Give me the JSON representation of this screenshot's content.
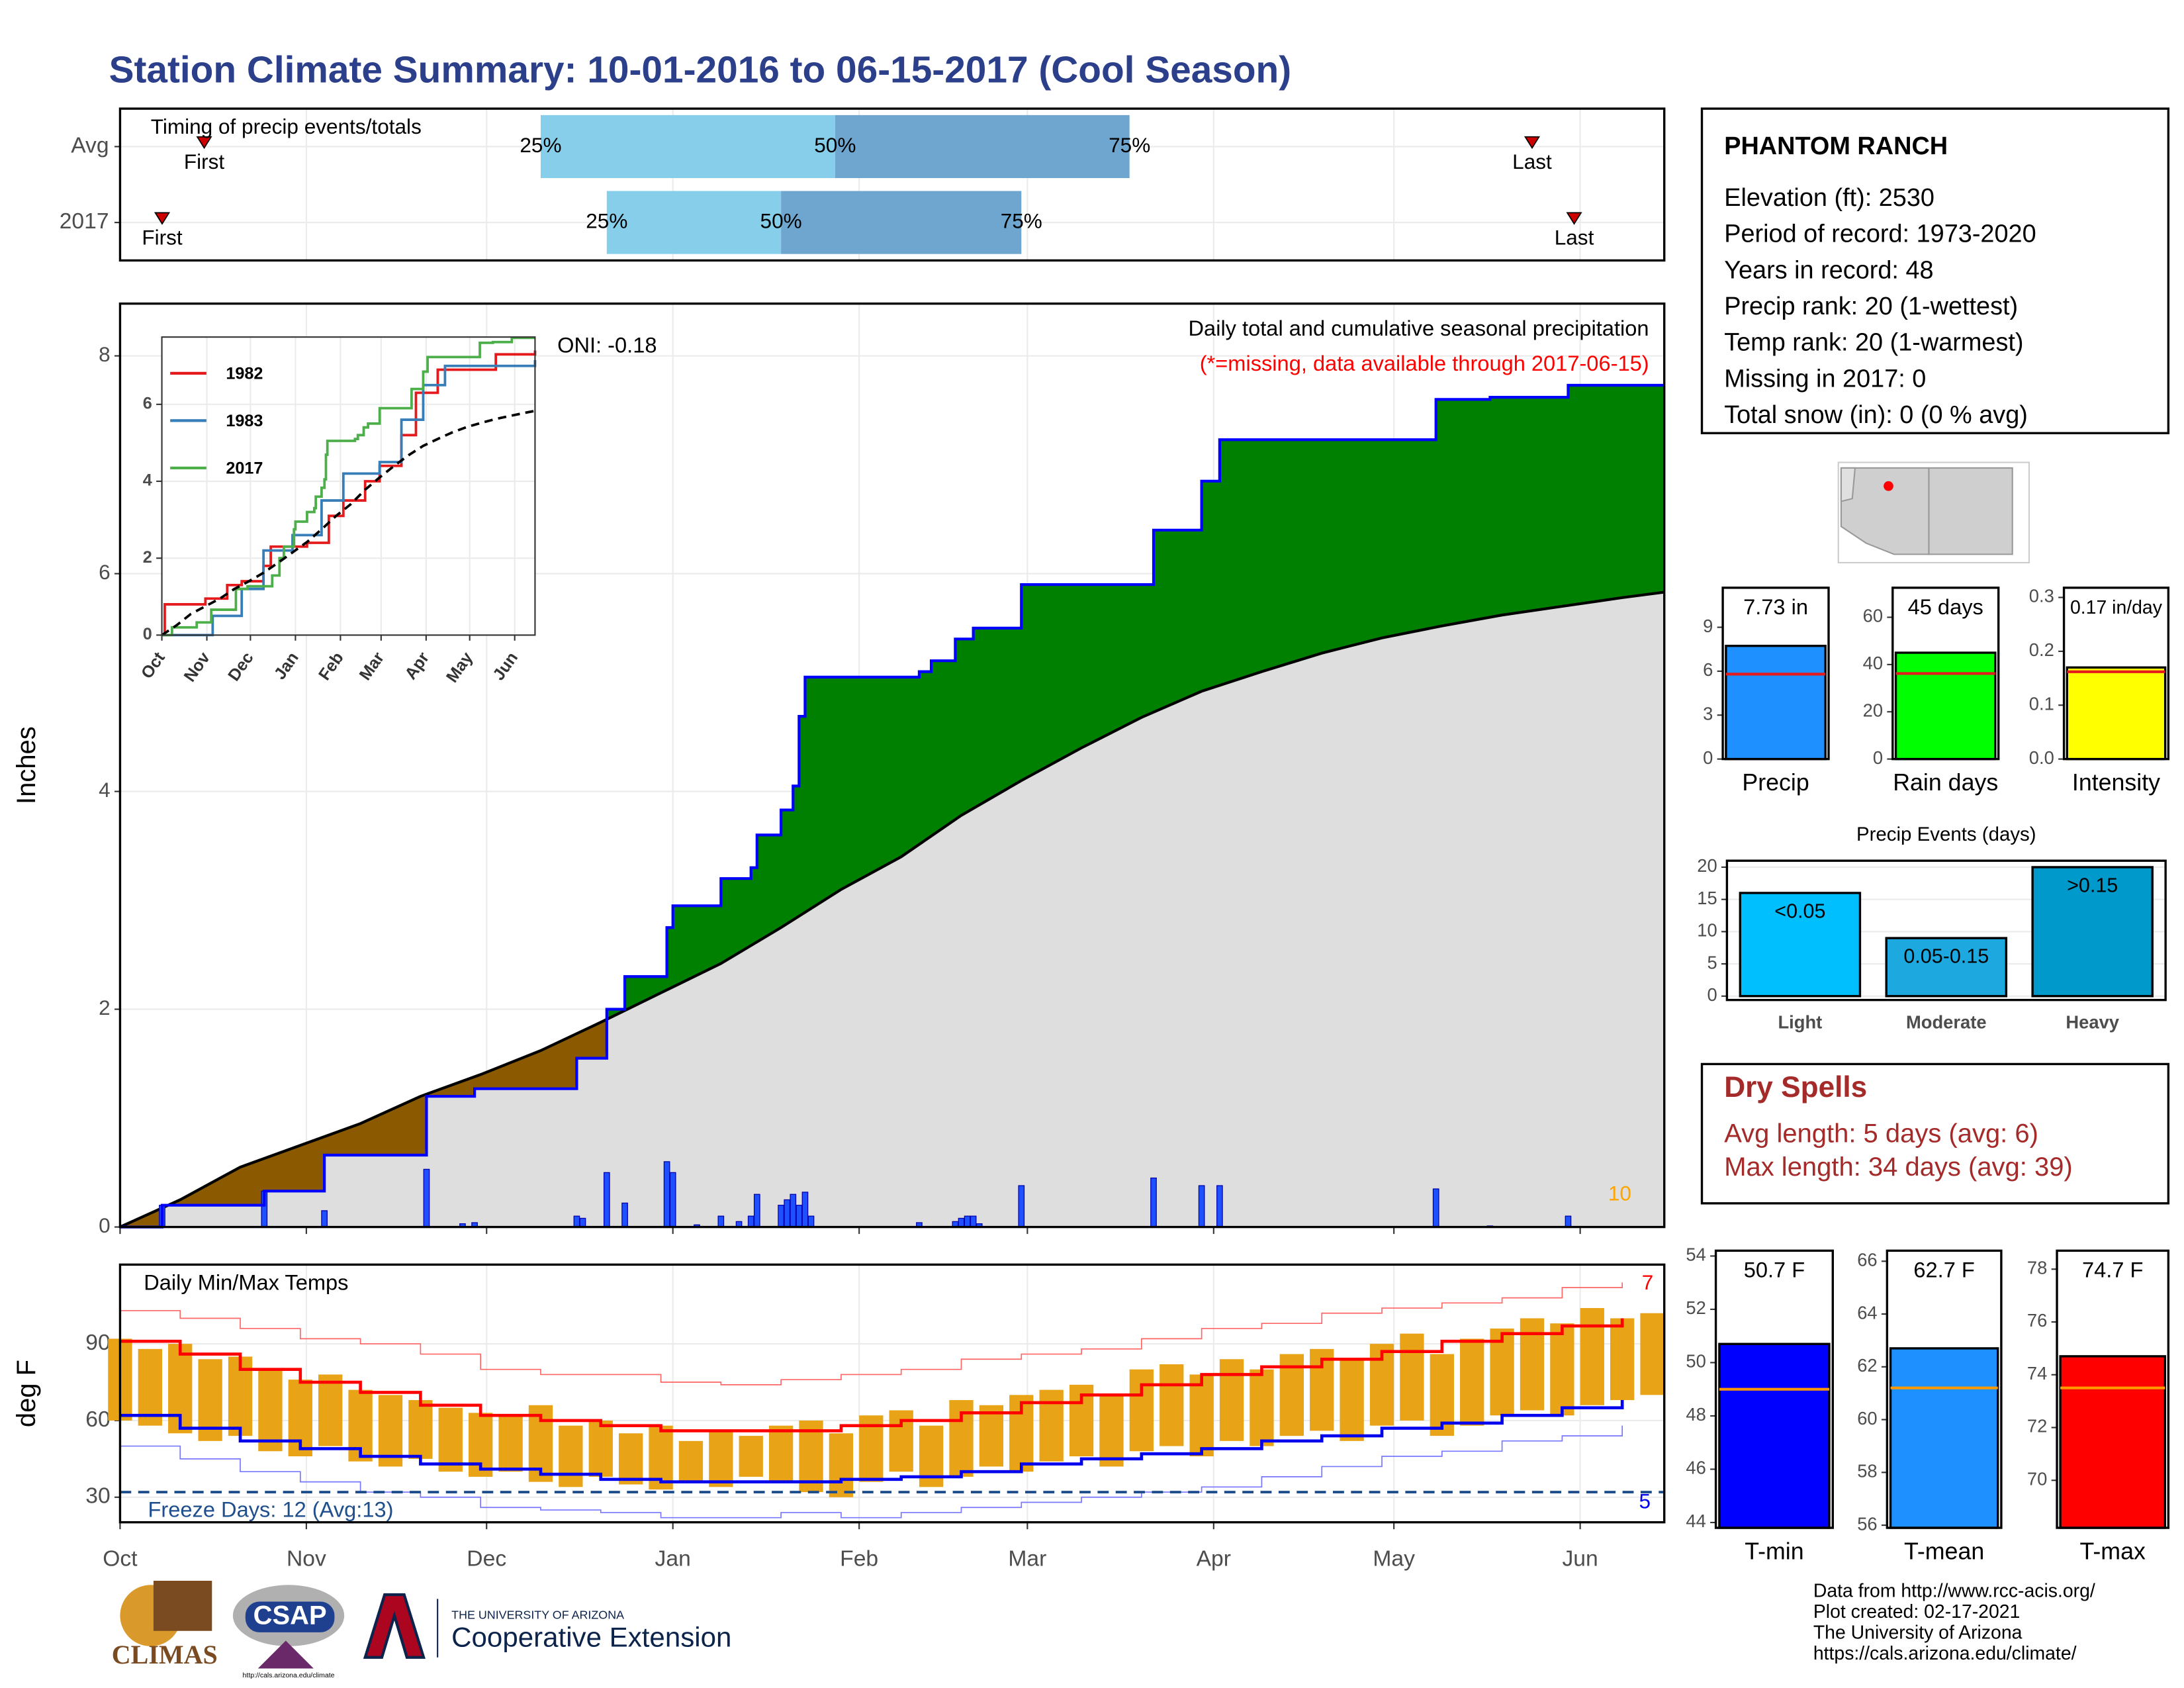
{
  "title": "Station Climate Summary: 10-01-2016 to 06-15-2017 (Cool Season)",
  "chart_data": [
    {
      "type": "timeline",
      "title": "Timing of precip events/totals",
      "xlim": [
        0,
        257
      ],
      "xticks": [
        0,
        31,
        61,
        92,
        123,
        151,
        182,
        212,
        243
      ],
      "marker_labels": {
        "first": "First",
        "last": "Last",
        "p25": "25%",
        "p50": "50%",
        "p75": "75%"
      },
      "colors": {
        "early": "#87ceeb",
        "late": "#6fa6cf",
        "marker": "#cc0000"
      },
      "rows": [
        {
          "name": "Avg",
          "first": 14,
          "p25": 70,
          "p50": 119,
          "p75": 168,
          "last": 235
        },
        {
          "name": "2017",
          "first": 7,
          "p25": 81,
          "p50": 110,
          "p75": 150,
          "last": 242
        }
      ]
    },
    {
      "type": "step",
      "title": "Daily total and cumulative seasonal precipitation",
      "subtitle": "(*=missing, data available through 2017-06-15)",
      "annotation": "ONI: -0.18",
      "corner_label": "10",
      "ylabel": "Inches",
      "xlim": [
        0,
        257
      ],
      "ylim": [
        0,
        8.48
      ],
      "yticks": [
        0,
        2,
        4,
        6,
        8
      ],
      "xticks": [
        0,
        31,
        61,
        92,
        123,
        151,
        182,
        212,
        243
      ],
      "grid": true,
      "colors": {
        "above": "#008000",
        "below": "#8b5a00",
        "base": "#dedede",
        "line": "#0000ff",
        "average": "#000000",
        "bar": "#1e50ff"
      },
      "cumulative": {
        "x": [
          0,
          7,
          24,
          34,
          51,
          59,
          76,
          81,
          84,
          91,
          92,
          100,
          105,
          106,
          110,
          112,
          113,
          114,
          133,
          135,
          139,
          142,
          150,
          172,
          180,
          183,
          219,
          228,
          241,
          257
        ],
        "values": [
          0,
          0.2,
          0.33,
          0.66,
          1.2,
          1.27,
          1.55,
          2.0,
          2.3,
          2.75,
          2.95,
          3.2,
          3.3,
          3.6,
          3.83,
          4.05,
          4.69,
          5.05,
          5.1,
          5.2,
          5.4,
          5.5,
          5.9,
          6.4,
          6.85,
          7.23,
          7.6,
          7.62,
          7.73,
          7.73
        ]
      },
      "average": {
        "x": [
          0,
          10,
          20,
          30,
          40,
          50,
          60,
          70,
          80,
          90,
          100,
          110,
          120,
          130,
          140,
          150,
          160,
          170,
          180,
          190,
          200,
          210,
          220,
          230,
          240,
          250,
          257
        ],
        "values": [
          0,
          0.25,
          0.55,
          0.75,
          0.95,
          1.2,
          1.4,
          1.62,
          1.88,
          2.15,
          2.42,
          2.75,
          3.1,
          3.4,
          3.78,
          4.1,
          4.4,
          4.68,
          4.92,
          5.1,
          5.27,
          5.41,
          5.52,
          5.62,
          5.7,
          5.78,
          5.83
        ]
      },
      "daily": {
        "x": [
          7,
          24,
          34,
          51,
          57,
          59,
          76,
          77,
          81,
          84,
          91,
          92,
          96,
          100,
          103,
          105,
          106,
          110,
          111,
          112,
          113,
          114,
          115,
          133,
          139,
          140,
          141,
          142,
          143,
          150,
          172,
          180,
          183,
          219,
          228,
          241
        ],
        "values": [
          0.2,
          0.33,
          0.15,
          0.53,
          0.03,
          0.04,
          0.1,
          0.08,
          0.5,
          0.22,
          0.6,
          0.5,
          0.02,
          0.1,
          0.05,
          0.1,
          0.3,
          0.2,
          0.25,
          0.3,
          0.2,
          0.32,
          0.1,
          0.04,
          0.05,
          0.08,
          0.1,
          0.1,
          0.03,
          0.38,
          0.45,
          0.38,
          0.38,
          0.35,
          0.01,
          0.1
        ]
      }
    },
    {
      "type": "line",
      "xlim": [
        0,
        257
      ],
      "ylim": [
        0,
        7.75
      ],
      "yticks": [
        0,
        2,
        4,
        6
      ],
      "grid": true,
      "xticks": [
        {
          "value": 0,
          "label": "Oct"
        },
        {
          "value": 31,
          "label": "Nov"
        },
        {
          "value": 61,
          "label": "Dec"
        },
        {
          "value": 92,
          "label": "Jan"
        },
        {
          "value": 123,
          "label": "Feb"
        },
        {
          "value": 151,
          "label": "Mar"
        },
        {
          "value": 182,
          "label": "Apr"
        },
        {
          "value": 212,
          "label": "May"
        },
        {
          "value": 243,
          "label": "Jun"
        }
      ],
      "series": [
        {
          "name": "1982",
          "color": "#e41a1c",
          "x": [
            0,
            2,
            30,
            45,
            55,
            70,
            75,
            100,
            115,
            125,
            140,
            150,
            165,
            175,
            190,
            230,
            257
          ],
          "values": [
            0,
            0.8,
            0.95,
            1.3,
            1.4,
            1.8,
            2.3,
            2.4,
            3.1,
            3.5,
            4.0,
            4.4,
            5.2,
            6.3,
            6.9,
            7.3,
            7.4
          ]
        },
        {
          "name": "1983",
          "color": "#377eb8",
          "x": [
            0,
            35,
            55,
            70,
            90,
            110,
            125,
            150,
            165,
            180,
            195,
            257
          ],
          "values": [
            0,
            0.5,
            1.2,
            2.2,
            2.6,
            3.5,
            4.2,
            4.5,
            5.6,
            6.5,
            7.0,
            7.15
          ]
        },
        {
          "name": "2017",
          "color": "#4daf4a",
          "x": [
            0,
            7,
            24,
            34,
            51,
            59,
            76,
            81,
            84,
            91,
            92,
            100,
            105,
            106,
            110,
            112,
            113,
            114,
            133,
            135,
            139,
            142,
            150,
            172,
            180,
            183,
            219,
            228,
            241,
            257
          ],
          "values": [
            0,
            0.2,
            0.33,
            0.66,
            1.2,
            1.27,
            1.55,
            2.0,
            2.3,
            2.75,
            2.95,
            3.2,
            3.3,
            3.6,
            3.83,
            4.05,
            4.69,
            5.05,
            5.1,
            5.2,
            5.4,
            5.5,
            5.9,
            6.4,
            6.85,
            7.23,
            7.6,
            7.62,
            7.73,
            7.73
          ]
        }
      ],
      "average": {
        "x": [
          0,
          10,
          20,
          30,
          40,
          50,
          60,
          70,
          80,
          90,
          100,
          110,
          120,
          130,
          140,
          150,
          160,
          170,
          180,
          190,
          200,
          210,
          220,
          230,
          240,
          250,
          257
        ],
        "values": [
          0,
          0.25,
          0.55,
          0.75,
          0.95,
          1.2,
          1.4,
          1.62,
          1.88,
          2.15,
          2.42,
          2.75,
          3.1,
          3.4,
          3.78,
          4.1,
          4.4,
          4.68,
          4.92,
          5.1,
          5.27,
          5.41,
          5.52,
          5.62,
          5.7,
          5.78,
          5.83
        ],
        "color": "#000000"
      }
    },
    {
      "type": "bar",
      "categories": [
        "Precip"
      ],
      "values": [
        7.73
      ],
      "value_labels": [
        "7.73 in"
      ],
      "average": 5.8,
      "average_color": "#e41a1c",
      "color": "#1e90ff",
      "ylim": [
        0,
        11.7
      ],
      "yticks": [
        0,
        3,
        6,
        9
      ]
    },
    {
      "type": "bar",
      "categories": [
        "Rain days"
      ],
      "values": [
        45
      ],
      "value_labels": [
        "45 days"
      ],
      "average": 36.2,
      "average_color": "#e41a1c",
      "color": "#00ff00",
      "ylim": [
        0,
        72.5
      ],
      "yticks": [
        0,
        20,
        40,
        60
      ]
    },
    {
      "type": "bar",
      "categories": [
        "Intensity"
      ],
      "values": [
        0.17
      ],
      "value_labels": [
        "0.17 in/day"
      ],
      "average": 0.162,
      "average_color": "#e41a1c",
      "color": "#ffff00",
      "ylim": [
        0,
        0.318
      ],
      "yticks": [
        {
          "value": 0,
          "label": "0.0"
        },
        {
          "value": 0.1,
          "label": "0.1"
        },
        {
          "value": 0.2,
          "label": "0.2"
        },
        {
          "value": 0.3,
          "label": "0.3"
        }
      ]
    },
    {
      "type": "bar",
      "title": "Precip Events (days)",
      "categories": [
        "Light",
        "Moderate",
        "Heavy"
      ],
      "values": [
        16,
        9,
        20
      ],
      "bar_labels": [
        "<0.05",
        "0.05-0.15",
        ">0.15"
      ],
      "colors": [
        "#00bfff",
        "#1ea8e0",
        "#0099cc"
      ],
      "ylim": [
        -0.6,
        21
      ],
      "yticks": [
        0,
        5,
        10,
        15,
        20
      ],
      "grid": true
    },
    {
      "type": "temperature",
      "title": "Daily Min/Max Temps",
      "annotation": "Freeze Days: 12 (Avg:13)",
      "ylabel": "deg F",
      "record_high_count": 7,
      "record_low_count": 5,
      "freeze": 32,
      "xlim": [
        0,
        257
      ],
      "ylim": [
        20.2,
        121
      ],
      "yticks": [
        30,
        60,
        90
      ],
      "grid": true,
      "xticks": [
        {
          "value": 0,
          "label": "Oct"
        },
        {
          "value": 31,
          "label": "Nov"
        },
        {
          "value": 61,
          "label": "Dec"
        },
        {
          "value": 92,
          "label": "Jan"
        },
        {
          "value": 123,
          "label": "Feb"
        },
        {
          "value": 151,
          "label": "Mar"
        },
        {
          "value": 182,
          "label": "Apr"
        },
        {
          "value": 212,
          "label": "May"
        },
        {
          "value": 243,
          "label": "Jun"
        }
      ],
      "daily": {
        "color": "#e8a317",
        "x": [
          0,
          5,
          10,
          15,
          20,
          25,
          30,
          35,
          40,
          45,
          50,
          55,
          60,
          65,
          70,
          75,
          80,
          85,
          90,
          95,
          100,
          105,
          110,
          115,
          120,
          125,
          130,
          135,
          140,
          145,
          150,
          155,
          160,
          165,
          170,
          175,
          180,
          185,
          190,
          195,
          200,
          205,
          210,
          215,
          220,
          225,
          230,
          235,
          240,
          245,
          250,
          255
        ],
        "max": [
          92,
          88,
          90,
          84,
          85,
          80,
          76,
          78,
          72,
          70,
          68,
          65,
          63,
          62,
          66,
          58,
          60,
          55,
          58,
          52,
          56,
          54,
          58,
          60,
          55,
          62,
          64,
          58,
          68,
          66,
          70,
          72,
          74,
          70,
          80,
          82,
          78,
          84,
          80,
          86,
          88,
          84,
          90,
          94,
          86,
          92,
          96,
          100,
          98,
          104,
          100,
          102
        ],
        "min": [
          60,
          58,
          55,
          52,
          54,
          48,
          46,
          50,
          44,
          42,
          45,
          40,
          38,
          40,
          36,
          34,
          38,
          35,
          33,
          36,
          34,
          38,
          36,
          32,
          30,
          36,
          40,
          34,
          38,
          42,
          40,
          44,
          46,
          42,
          48,
          50,
          46,
          52,
          50,
          54,
          56,
          52,
          58,
          60,
          54,
          58,
          62,
          64,
          62,
          66,
          68,
          70
        ]
      },
      "normal_max": {
        "color": "#ff0000",
        "x": [
          0,
          10,
          20,
          30,
          40,
          50,
          60,
          70,
          80,
          90,
          100,
          110,
          120,
          130,
          140,
          150,
          160,
          170,
          180,
          190,
          200,
          210,
          220,
          230,
          240,
          250
        ],
        "values": [
          91,
          86,
          80,
          75,
          71,
          66,
          62,
          60,
          58,
          56,
          56,
          56,
          58,
          60,
          63,
          67,
          70,
          74,
          78,
          81,
          84,
          87,
          91,
          94,
          97,
          100
        ]
      },
      "normal_min": {
        "color": "#0000ee",
        "x": [
          0,
          10,
          20,
          30,
          40,
          50,
          60,
          70,
          80,
          90,
          100,
          110,
          120,
          130,
          140,
          150,
          160,
          170,
          180,
          190,
          200,
          210,
          220,
          230,
          240,
          250
        ],
        "values": [
          62,
          57,
          52,
          49,
          46,
          43,
          41,
          39,
          37,
          36,
          36,
          36,
          37,
          38,
          40,
          43,
          45,
          47,
          49,
          52,
          54,
          57,
          59,
          62,
          65,
          68
        ]
      },
      "record_high": {
        "color": "#ff6666",
        "x": [
          0,
          10,
          20,
          30,
          40,
          50,
          60,
          70,
          80,
          90,
          100,
          110,
          120,
          130,
          140,
          150,
          160,
          170,
          180,
          190,
          200,
          210,
          220,
          230,
          240,
          250
        ],
        "values": [
          103,
          100,
          96,
          92,
          90,
          86,
          80,
          78,
          78,
          75,
          74,
          76,
          78,
          80,
          84,
          86,
          88,
          92,
          96,
          98,
          102,
          104,
          106,
          108,
          112,
          114
        ]
      },
      "record_low": {
        "color": "#7777ff",
        "x": [
          0,
          10,
          20,
          30,
          40,
          50,
          60,
          70,
          80,
          90,
          100,
          110,
          120,
          130,
          140,
          150,
          160,
          170,
          180,
          190,
          200,
          210,
          220,
          230,
          240,
          250
        ],
        "values": [
          50,
          45,
          40,
          36,
          32,
          30,
          26,
          25,
          24,
          22,
          22,
          24,
          22,
          24,
          26,
          28,
          30,
          32,
          34,
          38,
          42,
          46,
          48,
          52,
          54,
          58
        ]
      }
    },
    {
      "type": "bar",
      "categories": [
        "T-min"
      ],
      "values": [
        50.7
      ],
      "value_labels": [
        "50.7 F"
      ],
      "average": 49.0,
      "average_color": "#ff9900",
      "color": "#0000ff",
      "ylim": [
        43.8,
        54.2
      ],
      "yticks": [
        44,
        46,
        48,
        50,
        52,
        54
      ]
    },
    {
      "type": "bar",
      "categories": [
        "T-mean"
      ],
      "values": [
        62.7
      ],
      "value_labels": [
        "62.7 F"
      ],
      "average": 61.2,
      "average_color": "#ff9900",
      "color": "#1e90ff",
      "ylim": [
        55.9,
        66.4
      ],
      "yticks": [
        56,
        58,
        60,
        62,
        64,
        66
      ]
    },
    {
      "type": "bar",
      "categories": [
        "T-max"
      ],
      "values": [
        74.7
      ],
      "value_labels": [
        "74.7 F"
      ],
      "average": 73.5,
      "average_color": "#ff9900",
      "color": "#ff0000",
      "ylim": [
        68.2,
        78.7
      ],
      "yticks": [
        70,
        72,
        74,
        76,
        78
      ]
    }
  ],
  "station": {
    "name": "PHANTOM RANCH",
    "lines": [
      "Elevation (ft): 2530",
      "Period of record: 1973-2020",
      "Years in record: 48",
      "Precip rank: 20 (1-wettest)",
      "Temp rank: 20 (1-warmest)",
      "Missing in 2017: 0",
      "Total snow (in): 0 (0 % avg)"
    ]
  },
  "dry_spells": {
    "title": "Dry Spells",
    "lines": [
      "Avg length: 5 days (avg: 6)",
      "Max length: 34 days (avg: 39)"
    ]
  },
  "footer": {
    "credits": [
      "Data from http://www.rcc-acis.org/",
      "Plot created: 02-17-2021",
      "The University of Arizona",
      "https://cals.arizona.edu/climate/"
    ],
    "climas": "CLIMAS",
    "csap": "CSAP",
    "csap_url": "http://cals.arizona.edu/climate",
    "ua_small": "THE UNIVERSITY OF ARIZONA",
    "ua": "Cooperative Extension"
  }
}
